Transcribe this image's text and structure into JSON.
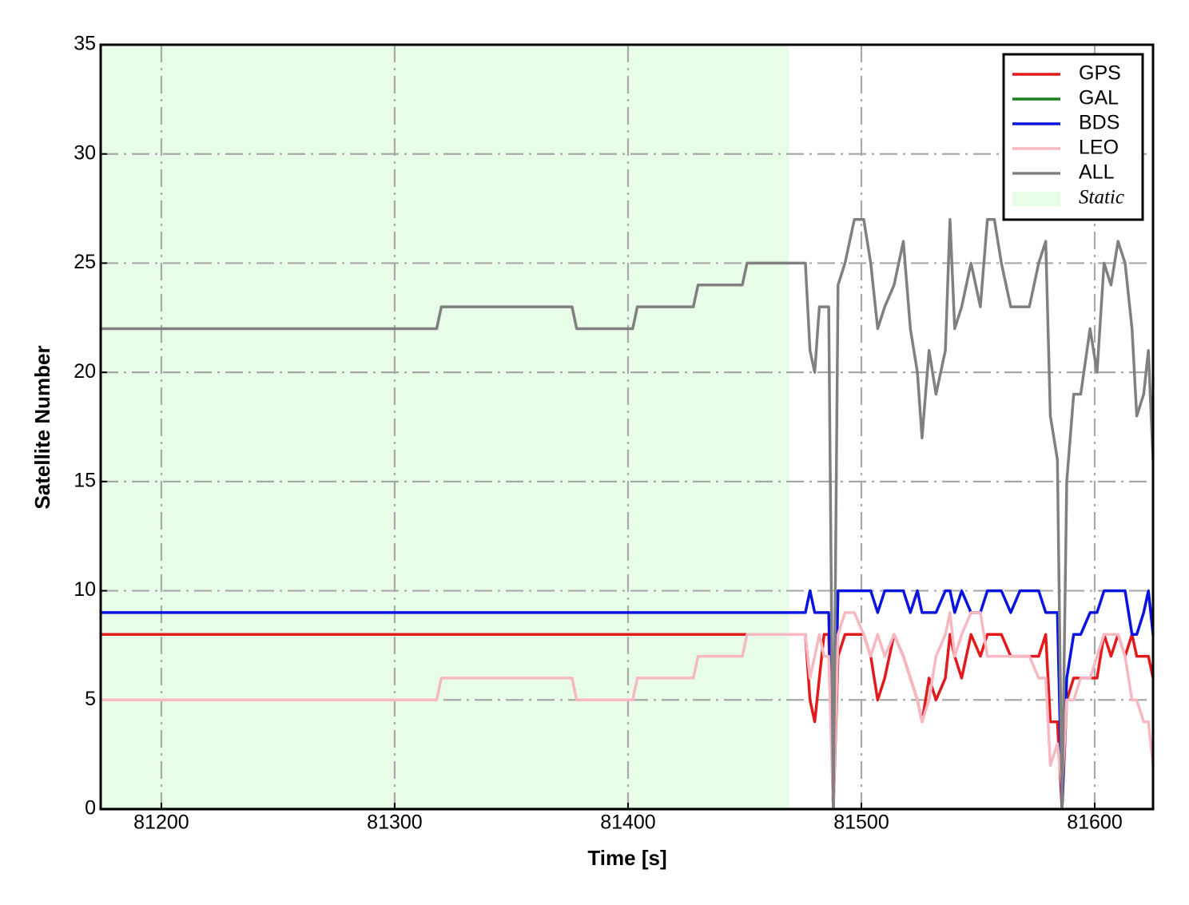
{
  "chart_data": {
    "type": "line",
    "x_label": "Time [s]",
    "y_label": "Satellite Number",
    "xlim": [
      81174,
      81625
    ],
    "ylim": [
      0,
      35
    ],
    "xticks": [
      81200,
      81300,
      81400,
      81500,
      81600
    ],
    "yticks": [
      0,
      5,
      10,
      15,
      20,
      25,
      30,
      35
    ],
    "grid": true,
    "legend": "upper right",
    "shaded_region": {
      "name": "Static",
      "color": "#e8fde8",
      "xlim": [
        81174,
        81469
      ]
    },
    "x": [
      81174,
      81318,
      81320,
      81376,
      81378,
      81402,
      81404,
      81428,
      81430,
      81449,
      81451,
      81470,
      81476,
      81478,
      81480,
      81482,
      81484,
      81486,
      81488,
      81490,
      81493,
      81497,
      81501,
      81504,
      81507,
      81510,
      81514,
      81518,
      81521,
      81524,
      81526,
      81529,
      81532,
      81536,
      81538,
      81540,
      81543,
      81547,
      81551,
      81554,
      81557,
      81560,
      81564,
      81568,
      81572,
      81576,
      81579,
      81581,
      81584,
      81586,
      81588,
      81591,
      81594,
      81598,
      81601,
      81604,
      81607,
      81610,
      81613,
      81616,
      81618,
      81621,
      81623,
      81625
    ],
    "series": [
      {
        "name": "GPS",
        "color": "#e31a1c",
        "values": [
          8,
          8,
          8,
          8,
          8,
          8,
          8,
          8,
          8,
          8,
          8,
          8,
          8,
          5,
          4,
          6,
          8,
          8,
          0,
          7,
          8,
          8,
          8,
          7,
          5,
          6,
          8,
          7,
          6,
          5,
          4,
          6,
          5,
          6,
          8,
          7,
          6,
          8,
          7,
          8,
          8,
          8,
          7,
          7,
          7,
          7,
          8,
          4,
          4,
          0,
          5,
          6,
          6,
          6,
          6,
          8,
          7,
          8,
          7,
          8,
          7,
          7,
          7,
          6
        ]
      },
      {
        "name": "GAL",
        "color": "#1a7f1a",
        "values": [
          0,
          0,
          0,
          0,
          0,
          0,
          0,
          0,
          0,
          0,
          0,
          0,
          0,
          0,
          0,
          0,
          0,
          0,
          0,
          0,
          0,
          0,
          0,
          0,
          0,
          0,
          0,
          0,
          0,
          0,
          0,
          0,
          0,
          0,
          0,
          0,
          0,
          0,
          0,
          0,
          0,
          0,
          0,
          0,
          0,
          0,
          0,
          0,
          0,
          0,
          0,
          0,
          0,
          0,
          0,
          0,
          0,
          0,
          0,
          0,
          0,
          0,
          0,
          0
        ]
      },
      {
        "name": "BDS",
        "color": "#0a14e0",
        "values": [
          9,
          9,
          9,
          9,
          9,
          9,
          9,
          9,
          9,
          9,
          9,
          9,
          9,
          10,
          9,
          9,
          9,
          9,
          0,
          10,
          10,
          10,
          10,
          10,
          9,
          10,
          10,
          10,
          9,
          10,
          9,
          9,
          9,
          10,
          10,
          9,
          10,
          9,
          9,
          10,
          10,
          10,
          9,
          10,
          10,
          10,
          9,
          9,
          9,
          0,
          6,
          8,
          8,
          9,
          9,
          10,
          10,
          10,
          10,
          8,
          8,
          9,
          10,
          8
        ]
      },
      {
        "name": "LEO",
        "color": "#f7b8c2",
        "values": [
          5,
          5,
          6,
          6,
          5,
          5,
          6,
          6,
          7,
          7,
          8,
          8,
          8,
          6,
          7,
          8,
          7,
          7,
          0,
          8,
          9,
          9,
          8,
          7,
          8,
          7,
          8,
          7,
          6,
          5,
          4,
          5,
          7,
          8,
          9,
          7,
          8,
          9,
          9,
          7,
          7,
          7,
          7,
          7,
          7,
          6,
          6,
          2,
          3,
          1,
          5,
          5,
          6,
          6,
          7,
          8,
          8,
          8,
          7,
          5,
          5,
          4,
          4,
          2
        ]
      },
      {
        "name": "ALL",
        "color": "#808080",
        "values": [
          22,
          22,
          23,
          23,
          22,
          22,
          23,
          23,
          24,
          24,
          25,
          25,
          25,
          21,
          20,
          23,
          23,
          23,
          0,
          24,
          25,
          27,
          27,
          25,
          22,
          23,
          24,
          26,
          22,
          20,
          17,
          21,
          19,
          21,
          27,
          22,
          23,
          25,
          23,
          27,
          27,
          25,
          23,
          23,
          23,
          25,
          26,
          18,
          16,
          0,
          15,
          19,
          19,
          22,
          20,
          25,
          24,
          26,
          25,
          22,
          18,
          19,
          21,
          16
        ]
      }
    ]
  }
}
